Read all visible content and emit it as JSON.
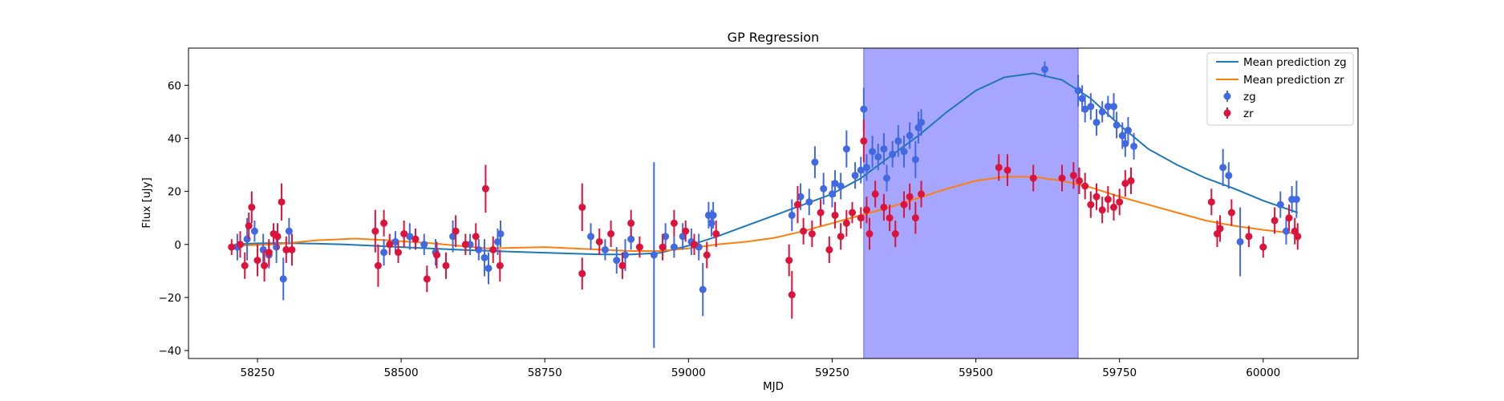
{
  "chart_data": {
    "type": "scatter",
    "title": "GP Regression",
    "xlabel": "MJD",
    "ylabel": "Flux [uJy]",
    "xlim": [
      58130,
      60165
    ],
    "ylim": [
      -43,
      74
    ],
    "xticks": [
      58250,
      58500,
      58750,
      59000,
      59250,
      59500,
      59750,
      60000
    ],
    "yticks": [
      -40,
      -20,
      0,
      20,
      40,
      60
    ],
    "grid": false,
    "legend_position": "top-right",
    "highlight_band": {
      "x_start": 59305,
      "x_end": 59678,
      "color": "#a6a6ff"
    },
    "lines": [
      {
        "name": "Mean prediction zg",
        "color": "#1f77b4",
        "points": [
          [
            58210,
            0
          ],
          [
            58250,
            0.4
          ],
          [
            58300,
            0.5
          ],
          [
            58350,
            0.3
          ],
          [
            58400,
            0
          ],
          [
            58450,
            -0.5
          ],
          [
            58500,
            -1
          ],
          [
            58600,
            -2
          ],
          [
            58700,
            -2.8
          ],
          [
            58800,
            -3.5
          ],
          [
            58850,
            -3.8
          ],
          [
            58900,
            -3.8
          ],
          [
            58950,
            -3.2
          ],
          [
            59000,
            -0.5
          ],
          [
            59050,
            3
          ],
          [
            59100,
            7
          ],
          [
            59150,
            11
          ],
          [
            59200,
            15
          ],
          [
            59250,
            19
          ],
          [
            59300,
            25
          ],
          [
            59350,
            33
          ],
          [
            59400,
            41
          ],
          [
            59450,
            50
          ],
          [
            59500,
            58
          ],
          [
            59550,
            63
          ],
          [
            59600,
            64.5
          ],
          [
            59650,
            62
          ],
          [
            59700,
            55
          ],
          [
            59750,
            45
          ],
          [
            59800,
            36
          ],
          [
            59850,
            30
          ],
          [
            59900,
            25
          ],
          [
            59950,
            21
          ],
          [
            60000,
            16.5
          ],
          [
            60060,
            12
          ]
        ]
      },
      {
        "name": "Mean prediction zr",
        "color": "#ff7f0e",
        "points": [
          [
            58210,
            -0.5
          ],
          [
            58280,
            0
          ],
          [
            58350,
            1.5
          ],
          [
            58420,
            2.2
          ],
          [
            58480,
            1.5
          ],
          [
            58550,
            0.5
          ],
          [
            58650,
            -1.5
          ],
          [
            58750,
            -1
          ],
          [
            58800,
            -1.5
          ],
          [
            58900,
            -2.5
          ],
          [
            58950,
            -2.5
          ],
          [
            59000,
            -1.5
          ],
          [
            59050,
            0
          ],
          [
            59100,
            1
          ],
          [
            59150,
            2.5
          ],
          [
            59200,
            5
          ],
          [
            59250,
            8
          ],
          [
            59300,
            11
          ],
          [
            59350,
            14
          ],
          [
            59400,
            17.5
          ],
          [
            59450,
            21
          ],
          [
            59500,
            24
          ],
          [
            59550,
            25.5
          ],
          [
            59600,
            25.5
          ],
          [
            59650,
            24
          ],
          [
            59700,
            21.5
          ],
          [
            59750,
            18
          ],
          [
            59800,
            15
          ],
          [
            59850,
            12
          ],
          [
            59900,
            9
          ],
          [
            59950,
            7
          ],
          [
            60000,
            5.5
          ],
          [
            60060,
            4
          ]
        ]
      }
    ],
    "series": [
      {
        "name": "zg",
        "color": "#4169e1",
        "points": [
          [
            58215,
            -1,
            5
          ],
          [
            58232,
            2,
            8
          ],
          [
            58245,
            5,
            4
          ],
          [
            58260,
            -2,
            6
          ],
          [
            58270,
            -4,
            5
          ],
          [
            58283,
            -1,
            6
          ],
          [
            58295,
            -13,
            8
          ],
          [
            58305,
            5,
            5
          ],
          [
            58470,
            -3,
            5
          ],
          [
            58490,
            1,
            4
          ],
          [
            58515,
            3,
            5
          ],
          [
            58540,
            0,
            4
          ],
          [
            58560,
            -3,
            5
          ],
          [
            58590,
            3,
            6
          ],
          [
            58620,
            0,
            4
          ],
          [
            58635,
            -2,
            4
          ],
          [
            58645,
            -5,
            7
          ],
          [
            58652,
            -9,
            6
          ],
          [
            58668,
            1,
            5
          ],
          [
            58673,
            4,
            5
          ],
          [
            58830,
            3,
            5
          ],
          [
            58855,
            -2,
            4
          ],
          [
            58875,
            -6,
            5
          ],
          [
            58890,
            -4,
            6
          ],
          [
            58900,
            2,
            4
          ],
          [
            58940,
            -4,
            35
          ],
          [
            58960,
            3,
            5
          ],
          [
            58975,
            -1,
            4
          ],
          [
            58990,
            3,
            5
          ],
          [
            59005,
            1,
            5
          ],
          [
            59018,
            -1,
            5
          ],
          [
            59025,
            -17,
            10
          ],
          [
            59035,
            11,
            5
          ],
          [
            59040,
            8,
            5
          ],
          [
            59043,
            11,
            5
          ],
          [
            59180,
            11,
            6
          ],
          [
            59195,
            18,
            5
          ],
          [
            59210,
            16,
            5
          ],
          [
            59220,
            31,
            6
          ],
          [
            59235,
            21,
            6
          ],
          [
            59250,
            19,
            5
          ],
          [
            59255,
            23,
            5
          ],
          [
            59265,
            22,
            5
          ],
          [
            59275,
            36,
            7
          ],
          [
            59290,
            26,
            5
          ],
          [
            59300,
            28,
            5
          ],
          [
            59305,
            51,
            8
          ],
          [
            59310,
            29,
            5
          ],
          [
            59320,
            35,
            6
          ],
          [
            59330,
            33,
            5
          ],
          [
            59340,
            36,
            6
          ],
          [
            59345,
            25,
            5
          ],
          [
            59355,
            34,
            5
          ],
          [
            59365,
            39,
            6
          ],
          [
            59375,
            35,
            6
          ],
          [
            59385,
            41,
            5
          ],
          [
            59395,
            32,
            7
          ],
          [
            59400,
            44,
            6
          ],
          [
            59405,
            46,
            5
          ],
          [
            59620,
            66,
            3
          ],
          [
            59678,
            58,
            6
          ],
          [
            59685,
            55,
            5
          ],
          [
            59690,
            51,
            5
          ],
          [
            59700,
            52,
            5
          ],
          [
            59710,
            46,
            5
          ],
          [
            59720,
            50,
            4
          ],
          [
            59730,
            52,
            4
          ],
          [
            59740,
            52,
            5
          ],
          [
            59745,
            45,
            5
          ],
          [
            59755,
            41,
            5
          ],
          [
            59760,
            38,
            5
          ],
          [
            59765,
            43,
            5
          ],
          [
            59775,
            37,
            5
          ],
          [
            59930,
            29,
            7
          ],
          [
            59940,
            26,
            5
          ],
          [
            59960,
            1,
            13
          ],
          [
            60030,
            15,
            5
          ],
          [
            60040,
            5,
            5
          ],
          [
            60050,
            17,
            5
          ],
          [
            60058,
            17,
            7
          ]
        ]
      },
      {
        "name": "zr",
        "color": "#dc143c",
        "points": [
          [
            58205,
            -1,
            3
          ],
          [
            58220,
            0,
            5
          ],
          [
            58228,
            -8,
            5
          ],
          [
            58235,
            7,
            5
          ],
          [
            58240,
            14,
            6
          ],
          [
            58250,
            -6,
            6
          ],
          [
            58262,
            -8,
            6
          ],
          [
            58270,
            -3,
            5
          ],
          [
            58278,
            4,
            4
          ],
          [
            58285,
            3,
            5
          ],
          [
            58292,
            16,
            7
          ],
          [
            58300,
            -2,
            5
          ],
          [
            58310,
            -2,
            6
          ],
          [
            58455,
            5,
            8
          ],
          [
            58460,
            -8,
            8
          ],
          [
            58470,
            8,
            5
          ],
          [
            58480,
            0,
            4
          ],
          [
            58495,
            -3,
            4
          ],
          [
            58505,
            4,
            5
          ],
          [
            58525,
            2,
            4
          ],
          [
            58545,
            -13,
            5
          ],
          [
            58562,
            -4,
            5
          ],
          [
            58578,
            -8,
            5
          ],
          [
            58595,
            5,
            6
          ],
          [
            58612,
            0,
            4
          ],
          [
            58630,
            3,
            5
          ],
          [
            58647,
            21,
            9
          ],
          [
            58660,
            -2,
            5
          ],
          [
            58672,
            -8,
            6
          ],
          [
            58815,
            14,
            9
          ],
          [
            58815,
            -11,
            6
          ],
          [
            58845,
            1,
            5
          ],
          [
            58865,
            4,
            5
          ],
          [
            58885,
            -8,
            5
          ],
          [
            58900,
            8,
            5
          ],
          [
            58915,
            -1,
            4
          ],
          [
            58955,
            -1,
            5
          ],
          [
            58975,
            8,
            5
          ],
          [
            58995,
            5,
            4
          ],
          [
            59010,
            0,
            4
          ],
          [
            59032,
            -4,
            5
          ],
          [
            59048,
            4,
            5
          ],
          [
            59175,
            -6,
            6
          ],
          [
            59180,
            -19,
            9
          ],
          [
            59190,
            15,
            7
          ],
          [
            59200,
            5,
            5
          ],
          [
            59215,
            4,
            5
          ],
          [
            59230,
            12,
            5
          ],
          [
            59245,
            -2,
            5
          ],
          [
            59255,
            11,
            5
          ],
          [
            59265,
            3,
            5
          ],
          [
            59275,
            8,
            5
          ],
          [
            59285,
            12,
            4
          ],
          [
            59300,
            10,
            4
          ],
          [
            59305,
            39,
            8
          ],
          [
            59310,
            13,
            5
          ],
          [
            59315,
            4,
            6
          ],
          [
            59325,
            19,
            5
          ],
          [
            59340,
            14,
            5
          ],
          [
            59350,
            10,
            5
          ],
          [
            59360,
            4,
            5
          ],
          [
            59375,
            15,
            5
          ],
          [
            59385,
            18,
            5
          ],
          [
            59395,
            10,
            6
          ],
          [
            59405,
            19,
            5
          ],
          [
            59540,
            29,
            5
          ],
          [
            59555,
            28,
            6
          ],
          [
            59600,
            25,
            5
          ],
          [
            59650,
            25,
            5
          ],
          [
            59670,
            26,
            5
          ],
          [
            59680,
            24,
            5
          ],
          [
            59690,
            22,
            5
          ],
          [
            59700,
            15,
            5
          ],
          [
            59710,
            18,
            5
          ],
          [
            59720,
            13,
            5
          ],
          [
            59730,
            17,
            5
          ],
          [
            59740,
            14,
            5
          ],
          [
            59750,
            16,
            5
          ],
          [
            59760,
            23,
            5
          ],
          [
            59770,
            24,
            5
          ],
          [
            59910,
            16,
            5
          ],
          [
            59920,
            4,
            5
          ],
          [
            59925,
            6,
            5
          ],
          [
            59945,
            12,
            5
          ],
          [
            59975,
            3,
            4
          ],
          [
            60000,
            -1,
            4
          ],
          [
            60020,
            9,
            5
          ],
          [
            60045,
            10,
            5
          ],
          [
            60055,
            5,
            5
          ],
          [
            60060,
            3,
            5
          ]
        ]
      }
    ]
  }
}
